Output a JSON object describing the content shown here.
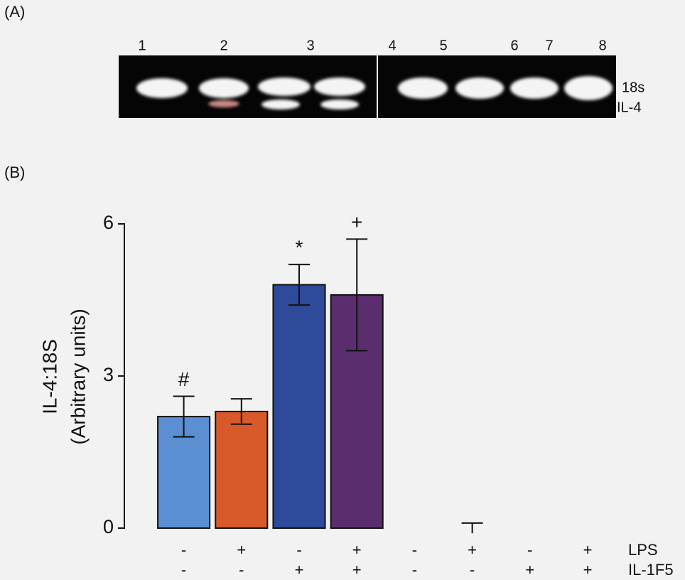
{
  "panel_a": {
    "label": "(A)",
    "lanes": [
      "1",
      "2",
      "3",
      "4",
      "5",
      "6",
      "7",
      "8"
    ],
    "bands": [
      "18s",
      "IL-4"
    ]
  },
  "chart_data": {
    "type": "bar",
    "panel_label": "(B)",
    "y_label": [
      "IL-4:18S",
      "(Arbitrary units)"
    ],
    "values": [
      2.2,
      2.3,
      4.8,
      4.6,
      0,
      0,
      0,
      0
    ],
    "errors": [
      0.4,
      0.25,
      0.4,
      1.1,
      0,
      0.1,
      0,
      0
    ],
    "colors": [
      "#5b8fd1",
      "#d85a2b",
      "#2f4a9a",
      "#5a2e6e",
      "#888888",
      "#888888",
      "#888888",
      "#888888"
    ],
    "value_annotations": [
      "#",
      null,
      "*",
      "+",
      null,
      null,
      null,
      null
    ],
    "ylim": [
      0,
      6
    ],
    "yticks": [
      0,
      3,
      6
    ],
    "treatments": [
      {
        "name": "LPS",
        "signs": [
          "-",
          "+",
          "-",
          "+",
          "-",
          "+",
          "-",
          "+"
        ]
      },
      {
        "name": "IL-1F5",
        "signs": [
          "-",
          "-",
          "+",
          "+",
          "-",
          "-",
          "+",
          "+"
        ]
      }
    ]
  }
}
